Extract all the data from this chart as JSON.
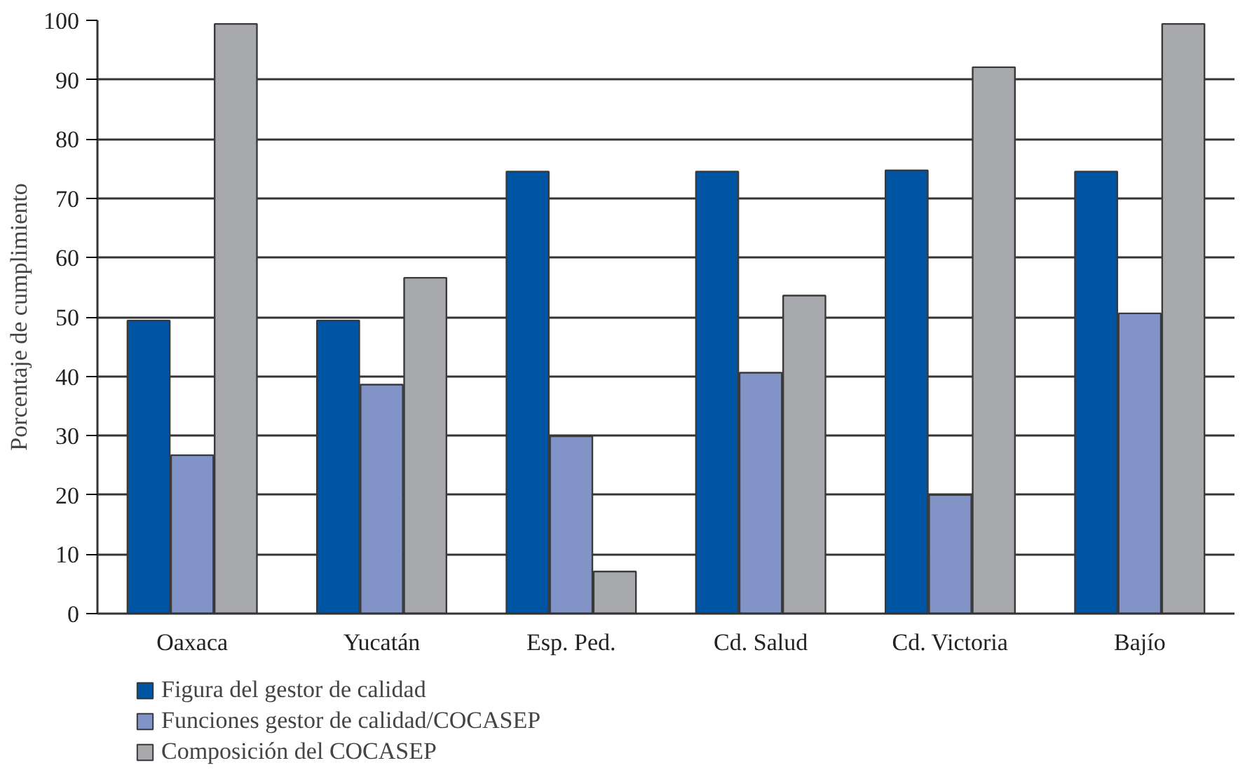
{
  "chart_data": {
    "type": "bar",
    "ylabel": "Porcentaje de cumplimiento",
    "categories": [
      "Oaxaca",
      "Yucatán",
      "Esp. Ped.",
      "Cd. Salud",
      "Cd. Victoria",
      "Bajío"
    ],
    "series": [
      {
        "name": "Figura del gestor de calidad",
        "color": "#0054a4",
        "values": [
          49.4,
          49.4,
          74.5,
          74.5,
          74.7,
          74.5
        ]
      },
      {
        "name": "Funciones gestor de calidad/COCASEP",
        "color": "#8293c8",
        "values": [
          26.7,
          38.6,
          29.9,
          40.6,
          20.0,
          50.6
        ]
      },
      {
        "name": "Composición del COCASEP",
        "color": "#a8a9ad",
        "values": [
          99.4,
          56.6,
          7.1,
          53.6,
          92.1,
          99.4
        ]
      }
    ],
    "ylim": [
      0,
      100
    ],
    "yticks": [
      0,
      10,
      20,
      30,
      40,
      50,
      60,
      70,
      80,
      90,
      100
    ],
    "grid": "y",
    "legend": "bottom"
  }
}
